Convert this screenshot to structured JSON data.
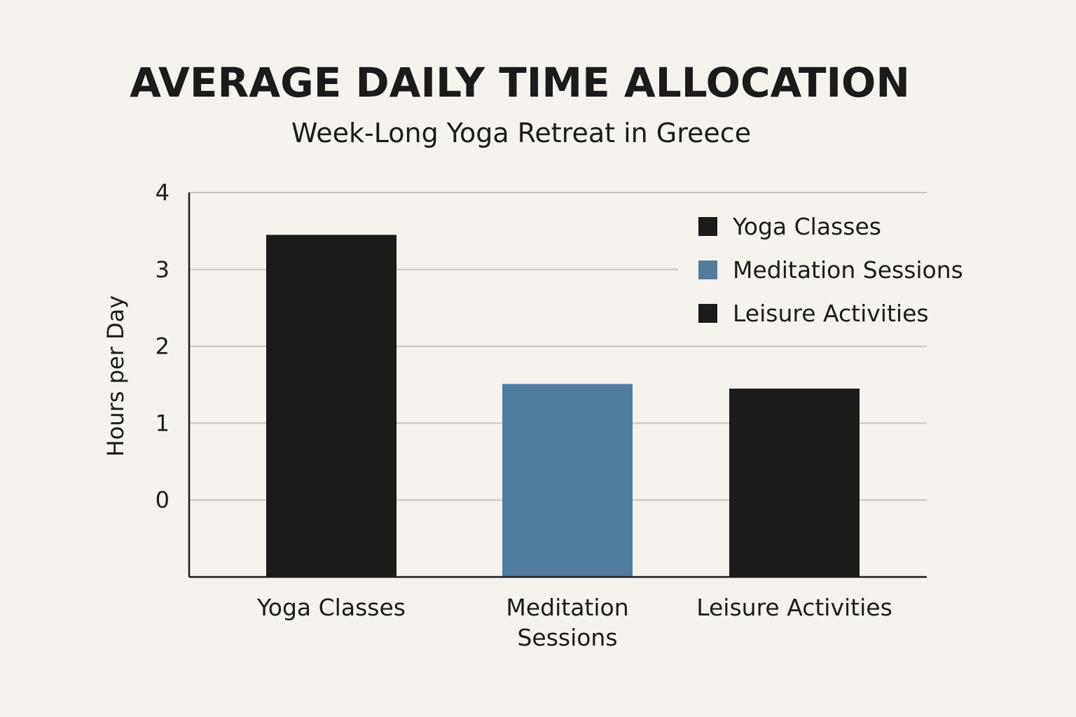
{
  "chart_data": {
    "type": "bar",
    "title": "AVERAGE DAILY TIME ALLOCATION",
    "subtitle": "Week-Long Yoga Retreat in Greece",
    "xlabel": "",
    "ylabel": "Hours per Day",
    "categories": [
      "Yoga Classes",
      "Meditation Sessions",
      "Leisure Activities"
    ],
    "category_lines": [
      [
        "Yoga Classes"
      ],
      [
        "Meditation",
        "Sessions"
      ],
      [
        "Leisure Activities"
      ]
    ],
    "values": [
      3.45,
      1.51,
      1.45
    ],
    "colors": [
      "#1b1b1b",
      "#527d9d",
      "#1b1b1b"
    ],
    "yticks": [
      0,
      1,
      2,
      3,
      4
    ],
    "ylim": [
      -1,
      4
    ],
    "grid": true,
    "legend": {
      "position": "top-right",
      "entries": [
        {
          "label": "Yoga Classes",
          "color": "#1b1b1b"
        },
        {
          "label": "Meditation Sessions",
          "color": "#527d9d"
        },
        {
          "label": "Leisure Activities",
          "color": "#1b1b1b"
        }
      ]
    }
  }
}
